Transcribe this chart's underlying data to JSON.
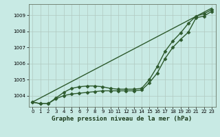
{
  "background_color": "#c8eae4",
  "grid_color": "#b0c8c0",
  "line_color": "#2d5a2d",
  "title": "Graphe pression niveau de la mer (hPa)",
  "xlim": [
    -0.5,
    23.5
  ],
  "ylim": [
    1003.3,
    1009.7
  ],
  "yticks": [
    1004,
    1005,
    1006,
    1007,
    1008,
    1009
  ],
  "xticks": [
    0,
    1,
    2,
    3,
    4,
    5,
    6,
    7,
    8,
    9,
    10,
    11,
    12,
    13,
    14,
    15,
    16,
    17,
    18,
    19,
    20,
    21,
    22,
    23
  ],
  "series": [
    {
      "x": [
        0,
        1,
        2,
        3,
        4,
        5,
        6,
        7,
        8,
        9,
        10,
        11,
        12,
        13,
        14,
        15,
        16,
        17,
        18,
        19,
        20,
        21,
        22,
        23
      ],
      "y": [
        1003.6,
        1003.5,
        1003.5,
        1003.8,
        1004.0,
        1004.1,
        1004.15,
        1004.2,
        1004.25,
        1004.3,
        1004.3,
        1004.3,
        1004.3,
        1004.3,
        1004.35,
        1004.8,
        1005.4,
        1006.3,
        1007.0,
        1007.5,
        1007.95,
        1008.85,
        1008.95,
        1009.25
      ],
      "marker": "D",
      "markersize": 2.5,
      "linewidth": 1.0
    },
    {
      "x": [
        0,
        1,
        2,
        3,
        4,
        5,
        6,
        7,
        8,
        9,
        10,
        11,
        12,
        13,
        14,
        15,
        16,
        17,
        18,
        19,
        20,
        21,
        22,
        23
      ],
      "y": [
        1003.6,
        1003.5,
        1003.5,
        1003.85,
        1004.2,
        1004.45,
        1004.55,
        1004.6,
        1004.6,
        1004.55,
        1004.45,
        1004.4,
        1004.4,
        1004.4,
        1004.45,
        1005.0,
        1005.8,
        1006.75,
        1007.4,
        1007.9,
        1008.5,
        1008.95,
        1009.1,
        1009.35
      ],
      "marker": "D",
      "markersize": 2.5,
      "linewidth": 1.0
    },
    {
      "x": [
        0,
        23
      ],
      "y": [
        1003.6,
        1009.45
      ],
      "marker": null,
      "markersize": 0,
      "linewidth": 1.0
    }
  ],
  "title_fontsize": 6.5,
  "title_color": "#1a3a1a",
  "tick_fontsize": 5,
  "ylabel_fontsize": 5
}
